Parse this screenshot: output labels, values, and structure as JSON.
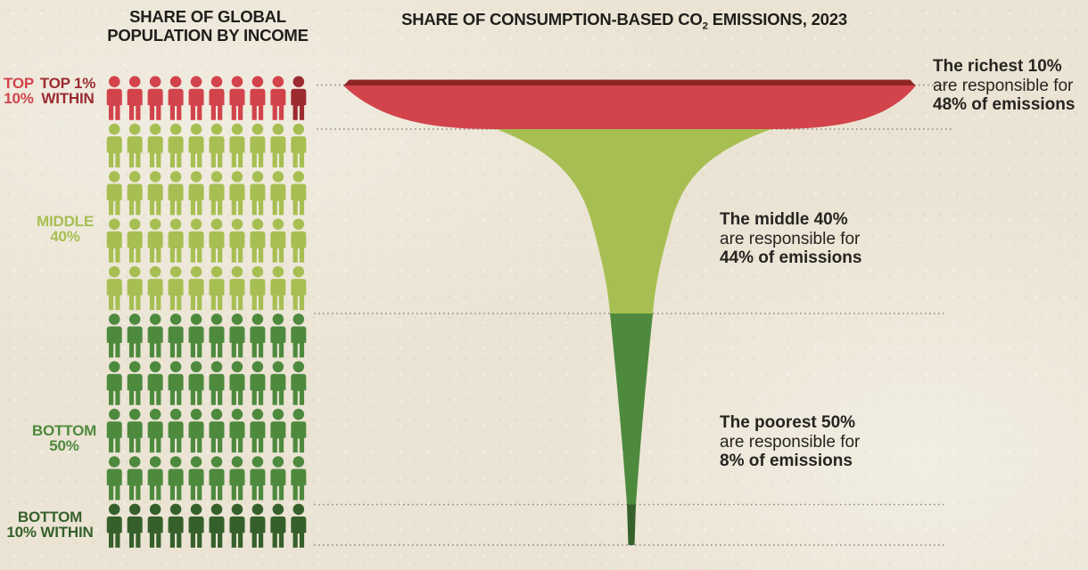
{
  "titles": {
    "left_line1": "SHARE OF GLOBAL",
    "left_line2": "POPULATION BY INCOME",
    "right_pre": "SHARE OF CONSUMPTION-BASED CO",
    "right_sub": "2",
    "right_post": " EMISSIONS, 2023"
  },
  "palette": {
    "background": "#ebe4d4",
    "text": "#1f1e1b",
    "dotted_line": "#8f897c",
    "red": "#d2434b",
    "dark_red": "#8e2525",
    "dark_red_figure": "#9c2b31",
    "light_green": "#a7bf52",
    "mid_green": "#4e8a3e",
    "dark_green": "#35602b"
  },
  "group_labels": {
    "top10": {
      "line1": "TOP",
      "line2": "10%"
    },
    "top1": {
      "line1": "TOP 1%",
      "line2": "WITHIN"
    },
    "middle40": {
      "line1": "MIDDLE",
      "line2": "40%"
    },
    "bottom50": {
      "line1": "BOTTOM",
      "line2": "50%"
    },
    "bottom10": {
      "line1": "BOTTOM",
      "line2": "10% WITHIN"
    }
  },
  "annotations": {
    "richest": {
      "line1": "The richest 10%",
      "line2": "are responsible for",
      "line3": "48% of emissions"
    },
    "middle": {
      "line1": "The middle 40%",
      "line2": "are responsible for",
      "line3": "44% of emissions"
    },
    "poorest": {
      "line1": "The poorest 50%",
      "line2": "are responsible for",
      "line3": "8% of emissions"
    }
  },
  "pictogram": {
    "columns": 10,
    "rows": [
      {
        "group": "top10",
        "cells": [
          "red",
          "red",
          "red",
          "red",
          "red",
          "red",
          "red",
          "red",
          "red",
          "dark_red_figure"
        ]
      },
      {
        "group": "middle40",
        "cells": [
          "light_green",
          "light_green",
          "light_green",
          "light_green",
          "light_green",
          "light_green",
          "light_green",
          "light_green",
          "light_green",
          "light_green"
        ]
      },
      {
        "group": "middle40",
        "cells": [
          "light_green",
          "light_green",
          "light_green",
          "light_green",
          "light_green",
          "light_green",
          "light_green",
          "light_green",
          "light_green",
          "light_green"
        ]
      },
      {
        "group": "middle40",
        "cells": [
          "light_green",
          "light_green",
          "light_green",
          "light_green",
          "light_green",
          "light_green",
          "light_green",
          "light_green",
          "light_green",
          "light_green"
        ]
      },
      {
        "group": "middle40",
        "cells": [
          "light_green",
          "light_green",
          "light_green",
          "light_green",
          "light_green",
          "light_green",
          "light_green",
          "light_green",
          "light_green",
          "light_green"
        ]
      },
      {
        "group": "bottom50",
        "cells": [
          "mid_green",
          "mid_green",
          "mid_green",
          "mid_green",
          "mid_green",
          "mid_green",
          "mid_green",
          "mid_green",
          "mid_green",
          "mid_green"
        ]
      },
      {
        "group": "bottom50",
        "cells": [
          "mid_green",
          "mid_green",
          "mid_green",
          "mid_green",
          "mid_green",
          "mid_green",
          "mid_green",
          "mid_green",
          "mid_green",
          "mid_green"
        ]
      },
      {
        "group": "bottom50",
        "cells": [
          "mid_green",
          "mid_green",
          "mid_green",
          "mid_green",
          "mid_green",
          "mid_green",
          "mid_green",
          "mid_green",
          "mid_green",
          "mid_green"
        ]
      },
      {
        "group": "bottom50",
        "cells": [
          "mid_green",
          "mid_green",
          "mid_green",
          "mid_green",
          "mid_green",
          "mid_green",
          "mid_green",
          "mid_green",
          "mid_green",
          "mid_green"
        ]
      },
      {
        "group": "bottom10",
        "cells": [
          "dark_green",
          "dark_green",
          "dark_green",
          "dark_green",
          "dark_green",
          "dark_green",
          "dark_green",
          "dark_green",
          "dark_green",
          "dark_green"
        ]
      }
    ]
  },
  "chart_data": {
    "type": "area",
    "subtype": "funnel-pictogram-infographic",
    "title": "SHARE OF CONSUMPTION-BASED CO2 EMISSIONS, 2023",
    "left_panel_title": "SHARE OF GLOBAL POPULATION BY INCOME",
    "categories": [
      "Richest 10%",
      "Middle 40%",
      "Poorest 50%"
    ],
    "series": [
      {
        "name": "Share of global population (%)",
        "values": [
          10,
          40,
          50
        ]
      },
      {
        "name": "Share of consumption-based CO2 emissions 2023 (%)",
        "values": [
          48,
          44,
          8
        ]
      }
    ],
    "sub_groups": [
      {
        "name": "Top 1% within",
        "parent": "Richest 10%"
      },
      {
        "name": "Bottom 10% within",
        "parent": "Poorest 50%"
      }
    ],
    "legend_position": "none",
    "grid": "dotted horizontal separators at group boundaries",
    "annotations": [
      "The richest 10% are responsible for 48% of emissions",
      "The middle 40% are responsible for 44% of emissions",
      "The poorest 50% are responsible for 8% of emissions"
    ]
  }
}
